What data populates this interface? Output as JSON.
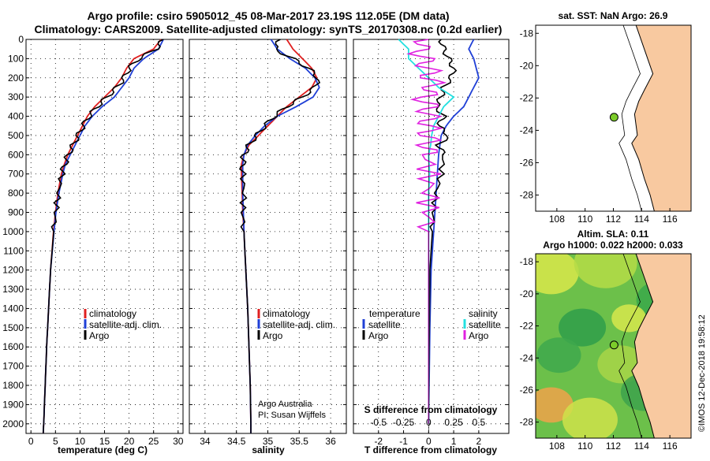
{
  "title_line1": "Argo profile: csiro 5905012_45 08-Mar-2017 23.19S 112.05E (DM data)",
  "title_line2": "Climatology: CARS2009. Satellite-adjusted climatology: synTS_20170308.nc (0.2d earlier)",
  "colors": {
    "climatology": "#e02020",
    "satellite": "#1f3fd6",
    "argo": "#000000",
    "sal_sat": "#22e0e0",
    "sal_argo": "#e020e0",
    "land": "#f8c9a0"
  },
  "chart_data": [
    {
      "type": "line",
      "name": "temperature",
      "xlabel": "temperature (deg C)",
      "ylabel": "",
      "xlim": [
        -1,
        31
      ],
      "xticks": [
        "0",
        "5",
        "10",
        "15",
        "20",
        "25",
        "30"
      ],
      "ylim": [
        0,
        2050
      ],
      "yticks": [
        "0",
        "100",
        "200",
        "300",
        "400",
        "500",
        "600",
        "700",
        "800",
        "900",
        "1000",
        "1100",
        "1200",
        "1300",
        "1400",
        "1500",
        "1600",
        "1700",
        "1800",
        "1900",
        "2000"
      ],
      "legend": [
        "climatology",
        "satellite-adj. clim.",
        "Argo"
      ],
      "series": [
        {
          "name": "climatology",
          "depth": [
            0,
            50,
            100,
            150,
            200,
            250,
            300,
            350,
            400,
            450,
            500,
            550,
            600,
            650,
            700,
            800,
            900,
            1000,
            1200,
            1400,
            1600,
            1800,
            2000,
            2050
          ],
          "values": [
            26.5,
            25,
            21,
            19.5,
            18.5,
            17,
            15,
            13,
            11.5,
            10.5,
            9.5,
            8.5,
            7.5,
            6.8,
            6.2,
            5.5,
            5,
            4.6,
            4,
            3.6,
            3.2,
            2.9,
            2.6,
            2.5
          ]
        },
        {
          "name": "satellite-adj. clim.",
          "depth": [
            0,
            50,
            100,
            150,
            200,
            250,
            300,
            350,
            400,
            450,
            500,
            550,
            600,
            650,
            700,
            800,
            900,
            1000,
            1200,
            1400,
            1600,
            1800,
            2000,
            2050
          ],
          "values": [
            27,
            26,
            23,
            21,
            20,
            18.5,
            17,
            14.5,
            12.5,
            11,
            10,
            9,
            8,
            7,
            6.5,
            5.7,
            5.1,
            4.7,
            4,
            3.6,
            3.2,
            2.9,
            2.6,
            2.5
          ]
        },
        {
          "name": "Argo",
          "depth": [
            0,
            50,
            100,
            150,
            200,
            250,
            300,
            350,
            400,
            450,
            500,
            550,
            600,
            650,
            700,
            800,
            900,
            1000,
            1200,
            1400,
            1600,
            1800,
            2000,
            2050
          ],
          "values": [
            27,
            25.5,
            22,
            20,
            19,
            17.5,
            15.5,
            13.5,
            11.8,
            10.6,
            9.6,
            8.6,
            7.6,
            6.9,
            6.3,
            5.6,
            5.05,
            4.65,
            4,
            3.6,
            3.2,
            2.9,
            2.6,
            2.5
          ]
        }
      ]
    },
    {
      "type": "line",
      "name": "salinity",
      "xlabel": "salinity",
      "xlim": [
        33.75,
        36.25
      ],
      "xticks": [
        "34",
        "34.5",
        "35",
        "35.5",
        "36"
      ],
      "ylim": [
        0,
        2050
      ],
      "legend": [
        "climatology",
        "satellite-adj. clim.",
        "Argo"
      ],
      "annotation": [
        "Argo Australia",
        "PI: Susan Wijffels"
      ],
      "series": [
        {
          "name": "climatology",
          "depth": [
            0,
            50,
            100,
            150,
            200,
            250,
            300,
            350,
            400,
            450,
            500,
            550,
            600,
            650,
            700,
            800,
            900,
            1000,
            1200,
            1400,
            1600,
            1800,
            2000,
            2050
          ],
          "values": [
            35.3,
            35.4,
            35.55,
            35.7,
            35.78,
            35.7,
            35.5,
            35.3,
            35.15,
            35.0,
            34.85,
            34.7,
            34.62,
            34.58,
            34.58,
            34.59,
            34.6,
            34.62,
            34.65,
            34.68,
            34.7,
            34.72,
            34.73,
            34.73
          ]
        },
        {
          "name": "satellite-adj. clim.",
          "depth": [
            0,
            50,
            100,
            150,
            200,
            250,
            300,
            350,
            400,
            450,
            500,
            550,
            600,
            650,
            700,
            800,
            900,
            1000,
            1200,
            1400,
            1600,
            1800,
            2000,
            2050
          ],
          "values": [
            35.05,
            35.15,
            35.35,
            35.6,
            35.75,
            35.82,
            35.72,
            35.45,
            35.15,
            34.95,
            34.8,
            34.68,
            34.62,
            34.6,
            34.6,
            34.6,
            34.61,
            34.62,
            34.65,
            34.68,
            34.7,
            34.72,
            34.73,
            34.73
          ]
        },
        {
          "name": "Argo",
          "depth": [
            0,
            50,
            100,
            150,
            200,
            250,
            300,
            350,
            400,
            450,
            500,
            550,
            600,
            650,
            700,
            800,
            900,
            1000,
            1200,
            1400,
            1600,
            1800,
            2000,
            2050
          ],
          "values": [
            35.2,
            35.1,
            35.4,
            35.65,
            35.8,
            35.75,
            35.55,
            35.3,
            35.1,
            34.95,
            34.82,
            34.7,
            34.62,
            34.6,
            34.6,
            34.62,
            34.6,
            34.62,
            34.65,
            34.68,
            34.7,
            34.72,
            34.73,
            34.73
          ]
        }
      ]
    },
    {
      "type": "line",
      "name": "differences",
      "xlabel": "T difference from climatology",
      "xlabel2": "S difference from climatology",
      "xlim": [
        -3,
        3.2
      ],
      "xticks": [
        "-2",
        "-1",
        "0",
        "1",
        "2"
      ],
      "xticks2": [
        "-0.5",
        "-0.25",
        "0",
        "0.25",
        "0.5"
      ],
      "ylim": [
        0,
        2050
      ],
      "legend_temp_title": "temperature",
      "legend_sal_title": "salinity",
      "legend_temp": [
        "satellite",
        "Argo"
      ],
      "legend_sal": [
        "satellite",
        "Argo"
      ],
      "series": [
        {
          "name": "T satellite",
          "depth": [
            0,
            50,
            100,
            150,
            200,
            250,
            300,
            350,
            400,
            450,
            500,
            550,
            600,
            700,
            800,
            900,
            1000,
            1200,
            1500,
            2000
          ],
          "values": [
            1.8,
            1.6,
            1.8,
            1.9,
            2.0,
            1.8,
            1.6,
            1.4,
            1.0,
            0.7,
            0.5,
            0.45,
            0.4,
            0.35,
            0.3,
            0.25,
            0.2,
            0.1,
            0.05,
            0.0
          ]
        },
        {
          "name": "T Argo",
          "depth": [
            0,
            50,
            100,
            150,
            200,
            250,
            300,
            350,
            400,
            450,
            500,
            550,
            600,
            700,
            800,
            900,
            1000,
            1200,
            1500,
            2000
          ],
          "values": [
            0.5,
            0.6,
            0.8,
            1.0,
            0.9,
            0.6,
            0.5,
            0.3,
            0.6,
            0.4,
            0.8,
            0.4,
            0.6,
            0.5,
            0.3,
            0.2,
            0.15,
            0.05,
            0.03,
            0.0
          ]
        },
        {
          "name": "S satellite",
          "depth": [
            0,
            50,
            100,
            150,
            200,
            250,
            300,
            350,
            400,
            450,
            500,
            550,
            600,
            700,
            800,
            900,
            1000,
            1200,
            1500,
            2000
          ],
          "values": [
            -0.3,
            -0.2,
            -0.2,
            -0.1,
            0.0,
            0.1,
            0.25,
            0.15,
            0.1,
            0.05,
            0.03,
            0.02,
            0.0,
            0.01,
            0.0,
            0.0,
            0.0,
            0.0,
            0.0,
            0.0
          ]
        },
        {
          "name": "S Argo",
          "depth": [
            0,
            50,
            100,
            150,
            200,
            250,
            300,
            350,
            400,
            450,
            500,
            550,
            600,
            700,
            800,
            900,
            1000,
            1200,
            1500,
            2000
          ],
          "values": [
            0.0,
            -0.1,
            -0.05,
            0.0,
            0.02,
            0.05,
            -0.05,
            0.0,
            0.0,
            0.0,
            0.0,
            0.0,
            -0.02,
            0.0,
            0.0,
            0.0,
            0.0,
            0.0,
            0.0,
            0.0
          ]
        }
      ]
    },
    {
      "type": "map",
      "name": "sst-map",
      "title": "sat. SST: NaN Argo: 26.9",
      "xticks": [
        "108",
        "110",
        "112",
        "114",
        "116"
      ],
      "yticks": [
        "-18",
        "-20",
        "-22",
        "-24",
        "-26",
        "-28"
      ],
      "xlim": [
        106.5,
        117.5
      ],
      "ylim": [
        -29,
        -17.5
      ],
      "argo_lon": 112.05,
      "argo_lat": -23.19
    },
    {
      "type": "heatmap",
      "name": "sla-map",
      "title_line1": "Altim. SLA: 0.11",
      "title_line2": "Argo h1000: 0.022 h2000: 0.033",
      "xticks": [
        "108",
        "110",
        "112",
        "114",
        "116"
      ],
      "yticks": [
        "-18",
        "-20",
        "-22",
        "-24",
        "-26",
        "-28"
      ],
      "xlim": [
        106.5,
        117.5
      ],
      "ylim": [
        -29,
        -17.5
      ],
      "argo_lon": 112.05,
      "argo_lat": -23.19
    }
  ],
  "side_label": "©IMOS 12-Dec-2018 19:58:12"
}
